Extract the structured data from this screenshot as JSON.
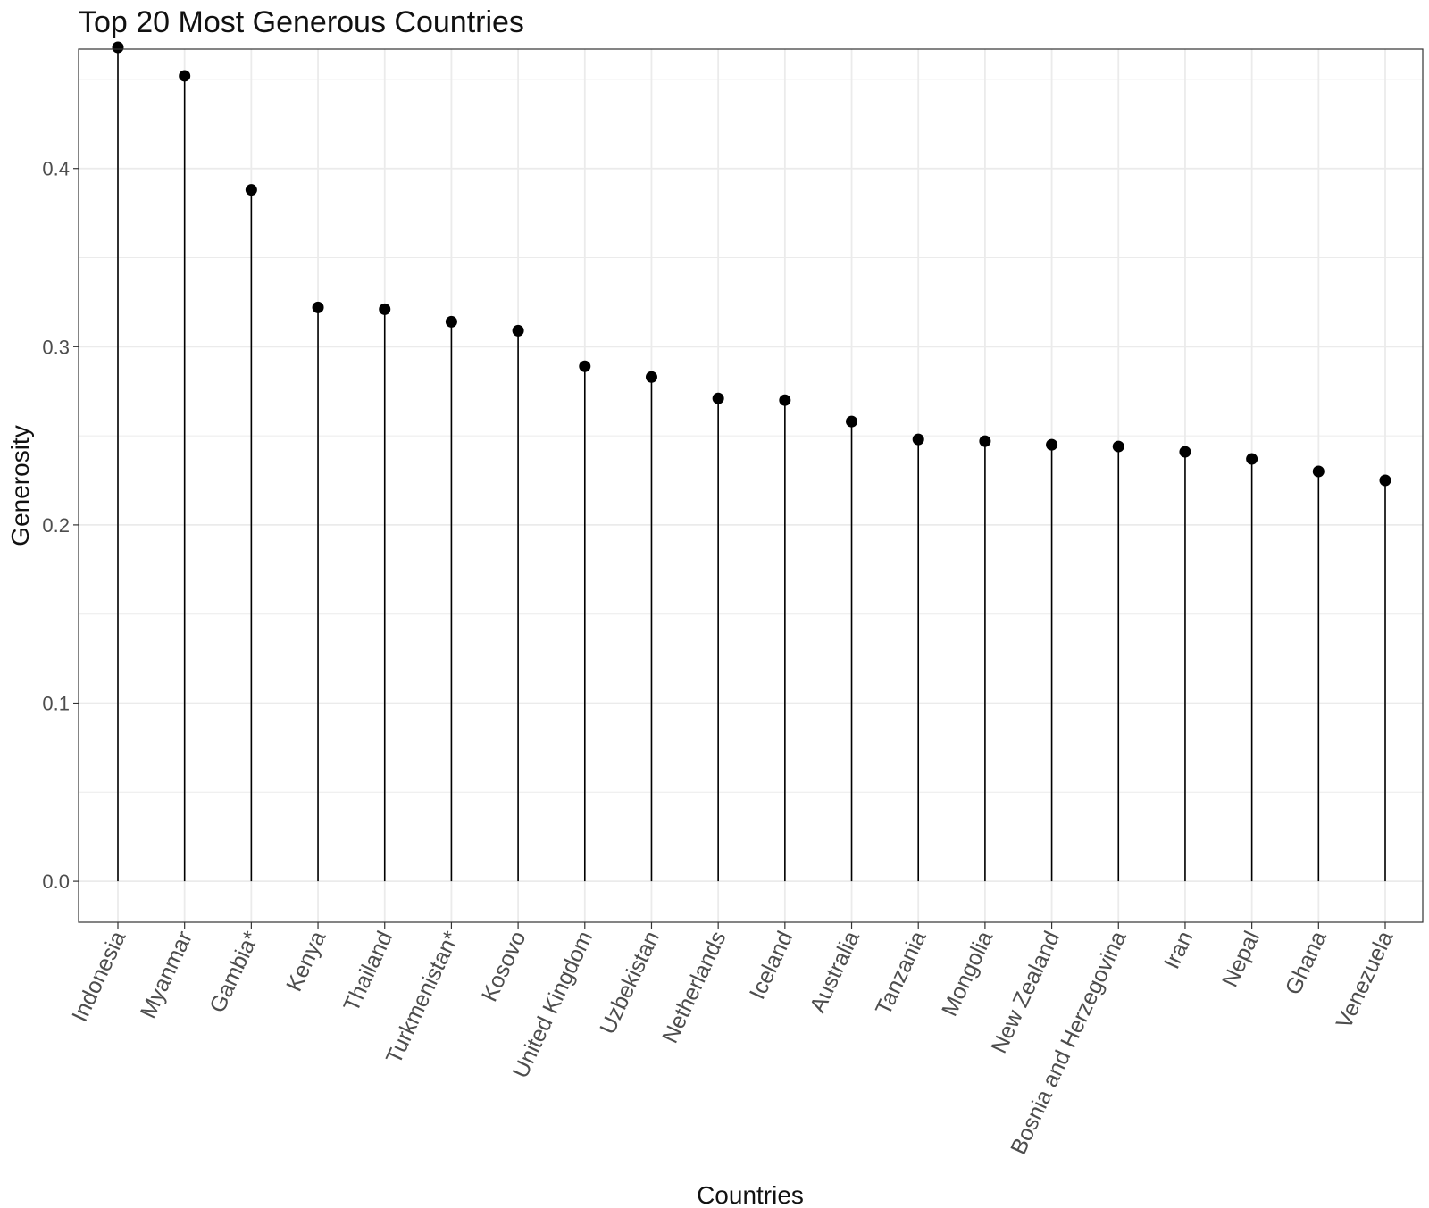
{
  "chart_data": {
    "type": "lollipop",
    "title": "Top 20 Most Generous Countries",
    "xlabel": "Countries",
    "ylabel": "Generosity",
    "ylim": [
      -0.023,
      0.467
    ],
    "yticks": [
      "0.0",
      "0.1",
      "0.2",
      "0.3",
      "0.4"
    ],
    "ytick_values": [
      0.0,
      0.1,
      0.2,
      0.3,
      0.4
    ],
    "grid": true,
    "categories": [
      "Indonesia",
      "Myanmar",
      "Gambia*",
      "Kenya",
      "Thailand",
      "Turkmenistan*",
      "Kosovo",
      "United Kingdom",
      "Uzbekistan",
      "Netherlands",
      "Iceland",
      "Australia",
      "Tanzania",
      "Mongolia",
      "New Zealand",
      "Bosnia and Herzegovina",
      "Iran",
      "Nepal",
      "Ghana",
      "Venezuela"
    ],
    "values": [
      0.468,
      0.452,
      0.388,
      0.322,
      0.321,
      0.314,
      0.309,
      0.289,
      0.283,
      0.271,
      0.27,
      0.258,
      0.248,
      0.247,
      0.245,
      0.244,
      0.241,
      0.237,
      0.23,
      0.225
    ],
    "colors": {
      "point": "#000000",
      "segment": "#000000",
      "grid": "#ebebeb",
      "panel_border": "#333333"
    }
  }
}
